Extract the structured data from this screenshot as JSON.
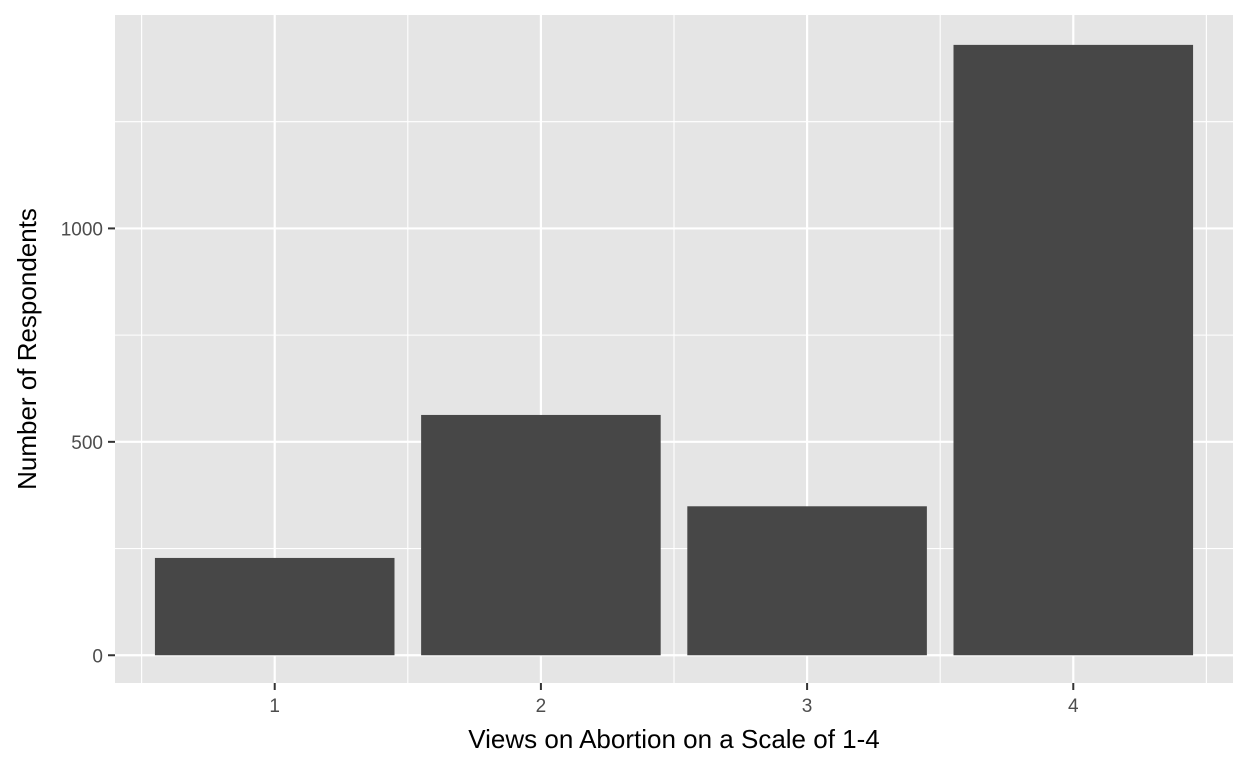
{
  "chart_data": {
    "type": "bar",
    "categories": [
      "1",
      "2",
      "3",
      "4"
    ],
    "values": [
      228,
      563,
      349,
      1430
    ],
    "title": "",
    "xlabel": "Views on Abortion on a Scale of 1-4",
    "ylabel": "Number of Respondents",
    "ylim": [
      -65,
      1500
    ],
    "yticks": [
      0,
      500,
      1000
    ],
    "grid": true,
    "colors": {
      "panel": "#e5e5e5",
      "bar": "#474747",
      "grid": "#ffffff",
      "tick_text": "#4d4d4d",
      "axis_text": "#000000"
    }
  }
}
